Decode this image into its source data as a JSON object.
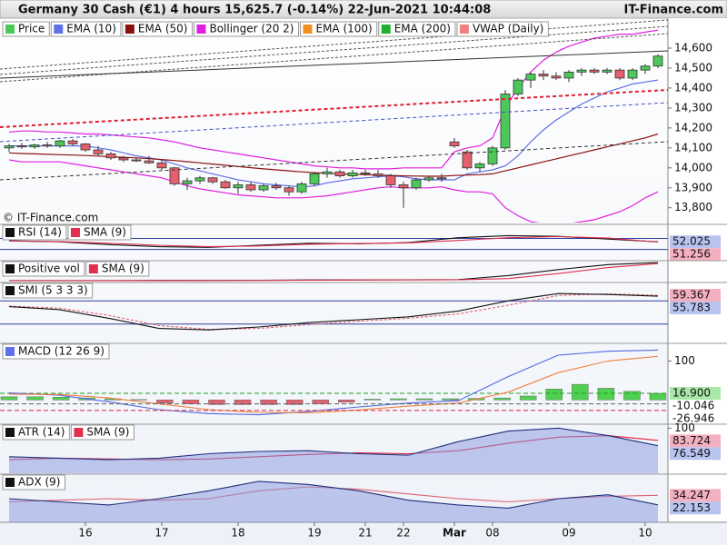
{
  "header": {
    "title": "Germany 30 Cash (€1) 4 hours 15,625.7 (-0.14%) 22-Jun-2021 10:44:08",
    "brand": "IT-Finance.com"
  },
  "chart_data": [
    {
      "type": "candlestick",
      "watermark": "© IT-Finance.com",
      "categories": [
        null,
        null,
        null,
        null,
        null,
        null,
        "16",
        null,
        null,
        null,
        null,
        null,
        "17",
        null,
        null,
        null,
        null,
        null,
        "18",
        null,
        null,
        null,
        null,
        null,
        "19",
        null,
        null,
        null,
        "21",
        null,
        null,
        "22",
        null,
        null,
        null,
        "Mar",
        null,
        null,
        "08",
        null,
        null,
        null,
        null,
        null,
        "09",
        null,
        null,
        null,
        null,
        null,
        "10",
        null
      ],
      "open": [
        14100,
        14110,
        14105,
        14115,
        14110,
        14135,
        14120,
        14090,
        14070,
        14050,
        14040,
        14035,
        14025,
        14000,
        13920,
        13935,
        13950,
        13930,
        13900,
        13915,
        13890,
        13910,
        13900,
        13880,
        13920,
        13970,
        13980,
        13960,
        13975,
        13970,
        13960,
        13915,
        13900,
        13940,
        13950,
        14130,
        14080,
        14000,
        14020,
        14100,
        14370,
        14440,
        14470,
        14460,
        14450,
        14480,
        14490,
        14480,
        14490,
        14450,
        14490,
        14510
      ],
      "high": [
        14120,
        14125,
        14120,
        14130,
        14140,
        14145,
        14125,
        14110,
        14080,
        14060,
        14050,
        14060,
        14040,
        14005,
        13950,
        13960,
        13955,
        13940,
        13930,
        13930,
        13920,
        13925,
        13910,
        13930,
        13980,
        14000,
        13990,
        13990,
        13990,
        13990,
        13970,
        13930,
        13950,
        13960,
        13970,
        14150,
        14090,
        14030,
        14110,
        14390,
        14450,
        14480,
        14490,
        14480,
        14490,
        14500,
        14500,
        14500,
        14500,
        14500,
        14520,
        14570
      ],
      "low": [
        14080,
        14095,
        14095,
        14100,
        14100,
        14110,
        14080,
        14060,
        14040,
        14030,
        14030,
        14020,
        13990,
        13910,
        13890,
        13920,
        13920,
        13895,
        13870,
        13880,
        13880,
        13890,
        13860,
        13870,
        13910,
        13950,
        13950,
        13950,
        13960,
        13950,
        13900,
        13800,
        13890,
        13930,
        13930,
        14100,
        13990,
        13980,
        14010,
        14090,
        14360,
        14400,
        14440,
        14440,
        14430,
        14460,
        14470,
        14470,
        14440,
        14440,
        14470,
        14500
      ],
      "close": [
        14110,
        14105,
        14115,
        14110,
        14135,
        14120,
        14090,
        14070,
        14050,
        14040,
        14035,
        14025,
        14000,
        13920,
        13935,
        13950,
        13930,
        13900,
        13915,
        13890,
        13910,
        13900,
        13880,
        13920,
        13970,
        13980,
        13960,
        13975,
        13970,
        13960,
        13915,
        13900,
        13940,
        13950,
        13945,
        14110,
        14000,
        14020,
        14100,
        14370,
        14440,
        14470,
        14460,
        14450,
        14480,
        14490,
        14480,
        14490,
        14450,
        14490,
        14510,
        14560
      ],
      "up_color": "#4cc85a",
      "down_color": "#e4606e",
      "ylim": [
        13726,
        14650
      ],
      "yticks": [
        {
          "value": 13800,
          "label": "13,800"
        },
        {
          "value": 13900,
          "label": "13,900"
        },
        {
          "value": 14000,
          "label": "14,000"
        },
        {
          "value": 14100,
          "label": "14,100"
        },
        {
          "value": 14200,
          "label": "14,200"
        },
        {
          "value": 14300,
          "label": "14,300"
        },
        {
          "value": 14400,
          "label": "14,400"
        },
        {
          "value": 14500,
          "label": "14,500"
        },
        {
          "value": 14600,
          "label": "14,600"
        }
      ],
      "legend": [
        {
          "name": "Price",
          "color": "#4cc85a"
        },
        {
          "name": "EMA (10)",
          "color": "#6070e8"
        },
        {
          "name": "EMA (50)",
          "color": "#8b1010"
        },
        {
          "name": "Bollinger (20 2)",
          "color": "#e020e0"
        },
        {
          "name": "EMA (100)",
          "color": "#f09020"
        },
        {
          "name": "EMA (200)",
          "color": "#20b030"
        },
        {
          "name": "VWAP (Daily)",
          "color": "#f08080"
        }
      ],
      "series": [
        {
          "color": "#6070e8",
          "values": [
            14110,
            14110,
            14110,
            14110,
            14110,
            14110,
            14110,
            14100,
            14090,
            14075,
            14060,
            14050,
            14040,
            14020,
            14000,
            13985,
            13970,
            13955,
            13940,
            13930,
            13920,
            13915,
            13910,
            13905,
            13910,
            13925,
            13935,
            13945,
            13950,
            13955,
            13960,
            13955,
            13945,
            13940,
            13940,
            13940,
            13970,
            13980,
            13990,
            14010,
            14060,
            14130,
            14190,
            14240,
            14280,
            14320,
            14350,
            14380,
            14400,
            14420,
            14430,
            14440
          ]
        },
        {
          "color": "#8b1010",
          "values": [
            14075,
            14072,
            14070,
            14068,
            14066,
            14064,
            14062,
            14059,
            14056,
            14053,
            14050,
            14046,
            14042,
            14037,
            14031,
            14025,
            14019,
            14013,
            14007,
            14001,
            13995,
            13990,
            13985,
            13980,
            13976,
            13973,
            13970,
            13968,
            13966,
            13964,
            13962,
            13960,
            13959,
            13958,
            13958,
            13962,
            13964,
            13966,
            13970,
            13985,
            14000,
            14015,
            14030,
            14045,
            14060,
            14075,
            14090,
            14105,
            14120,
            14135,
            14150,
            14170
          ]
        },
        {
          "color": "#e020e0",
          "values": [
            14180,
            14185,
            14185,
            14180,
            14180,
            14175,
            14170,
            14170,
            14165,
            14160,
            14155,
            14150,
            14140,
            14130,
            14115,
            14100,
            14090,
            14080,
            14070,
            14060,
            14050,
            14040,
            14030,
            14020,
            14010,
            14005,
            14000,
            14000,
            13995,
            13995,
            13995,
            14000,
            14000,
            14000,
            14000,
            14080,
            14100,
            14110,
            14150,
            14300,
            14400,
            14480,
            14540,
            14580,
            14610,
            14630,
            14650,
            14660,
            14670,
            14670,
            14680,
            14690
          ]
        },
        {
          "color": "#e020e0",
          "values": [
            14040,
            14030,
            14030,
            14030,
            14030,
            14020,
            14010,
            14000,
            13990,
            13980,
            13970,
            13960,
            13950,
            13930,
            13910,
            13895,
            13885,
            13875,
            13865,
            13860,
            13855,
            13850,
            13850,
            13850,
            13855,
            13860,
            13870,
            13880,
            13890,
            13900,
            13905,
            13900,
            13900,
            13900,
            13905,
            13890,
            13880,
            13880,
            13870,
            13800,
            13760,
            13730,
            13720,
            13720,
            13720,
            13730,
            13740,
            13760,
            13780,
            13810,
            13850,
            13880
          ]
        }
      ]
    },
    {
      "type": "indicator",
      "legend": [
        {
          "name": "RSI (14)",
          "color": "#111111"
        },
        {
          "name": "SMA (9)",
          "color": "#e03050"
        }
      ],
      "ylim": [
        0,
        100
      ],
      "hlines": [
        62,
        30
      ],
      "series": [
        {
          "color": "#111111",
          "box": "#b8c4f0",
          "show_last": true,
          "values": [
            55,
            52,
            44,
            38,
            36,
            42,
            48,
            46,
            50,
            64,
            70,
            68,
            60,
            52.025
          ]
        },
        {
          "color": "#e03050",
          "box": "#f4b0c0",
          "show_last": true,
          "values": [
            54,
            53,
            48,
            42,
            38,
            40,
            45,
            47,
            49,
            56,
            64,
            67,
            63,
            51.256
          ]
        }
      ]
    },
    {
      "type": "indicator",
      "legend": [
        {
          "name": "Positive vol",
          "color": "#111111"
        },
        {
          "name": "SMA (9)",
          "color": "#e03050"
        }
      ],
      "ylim": [
        0,
        100
      ],
      "series": [
        {
          "color": "#111111",
          "values": [
            5,
            5,
            5,
            6,
            6,
            7,
            8,
            8,
            9,
            10,
            30,
            60,
            85,
            95
          ]
        },
        {
          "color": "#e03050",
          "values": [
            5,
            5,
            5,
            5,
            6,
            6,
            7,
            8,
            8,
            9,
            15,
            40,
            70,
            90
          ]
        }
      ]
    },
    {
      "type": "indicator",
      "legend": [
        {
          "name": "SMI (5 3 3 3)",
          "color": "#111111"
        }
      ],
      "ylim": [
        -100,
        100
      ],
      "hlines": [
        40,
        -40
      ],
      "series": [
        {
          "color": "#e06070",
          "box": "#f4b0c0",
          "show_last": true,
          "dash": true,
          "values": [
            22,
            15,
            -10,
            -45,
            -58,
            -55,
            -42,
            -30,
            -20,
            -5,
            25,
            58,
            64,
            59.367
          ]
        },
        {
          "color": "#111111",
          "box": "#b8c4f0",
          "show_last": true,
          "values": [
            20,
            10,
            -20,
            -55,
            -60,
            -50,
            -35,
            -25,
            -15,
            5,
            40,
            65,
            62,
            55.783
          ]
        }
      ]
    },
    {
      "type": "indicator",
      "legend": [
        {
          "name": "MACD (12 26 9)",
          "color": "#6070e8"
        }
      ],
      "ylim": [
        -60,
        143
      ],
      "yticks": [
        100
      ],
      "bars": {
        "color": "#50d050",
        "box": "#a8e8a8",
        "values": [
          8,
          8,
          7,
          5,
          3,
          1,
          -8,
          -10,
          -12,
          -12,
          -12,
          -12,
          -10,
          -6,
          2,
          3,
          3,
          3,
          4,
          5,
          10,
          28,
          40,
          30,
          22,
          16.9
        ],
        "value_labels": [
          null,
          null,
          null,
          null,
          null,
          null,
          null,
          null,
          null,
          null,
          null,
          null,
          null,
          null,
          null,
          null,
          null,
          null,
          null,
          null,
          null,
          null,
          null,
          null,
          null,
          "16.900"
        ]
      },
      "neg_color": "#e4606e",
      "levels": [
        {
          "value": -10.046,
          "color": "#606060"
        },
        {
          "value": -26.946,
          "color": "#e02040"
        }
      ],
      "series": [
        {
          "color": "#5068e0",
          "values": [
            18,
            12,
            -5,
            -25,
            -35,
            -38,
            -30,
            -18,
            -8,
            -2,
            60,
            115,
            125,
            128
          ]
        },
        {
          "color": "#f08040",
          "values": [
            15,
            14,
            5,
            -10,
            -25,
            -32,
            -33,
            -26,
            -16,
            -8,
            20,
            70,
            100,
            112
          ]
        }
      ]
    },
    {
      "type": "indicator",
      "legend": [
        {
          "name": "ATR (14)",
          "color": "#111111"
        },
        {
          "name": "SMA (9)",
          "color": "#e03050"
        }
      ],
      "ylim": [
        40,
        104
      ],
      "yticks": [
        100
      ],
      "series": [
        {
          "color": "#e02040",
          "box": "#f4b0c0",
          "show_last": true,
          "values": [
            58,
            60,
            59,
            58,
            59,
            62,
            65,
            67,
            66,
            70,
            80,
            88,
            90,
            83.724
          ]
        },
        {
          "color": "#20307a",
          "fill": "#8898e0",
          "box": "#b8c4f0",
          "show_last": true,
          "values": [
            62,
            60,
            58,
            60,
            66,
            69,
            70,
            66,
            64,
            82,
            96,
            100,
            90,
            76.549
          ]
        }
      ]
    },
    {
      "type": "indicator",
      "legend": [
        {
          "name": "ADX (9)",
          "color": "#111111"
        }
      ],
      "ylim": [
        0,
        60
      ],
      "series": [
        {
          "color": "#e06070",
          "box": "#f4b0c0",
          "show_last": true,
          "values": [
            26,
            28,
            30,
            28,
            30,
            40,
            45,
            42,
            36,
            30,
            26,
            30,
            33,
            34.247
          ]
        },
        {
          "color": "#20307a",
          "fill": "#8898e0",
          "box": "#b8c4f0",
          "show_last": true,
          "values": [
            30,
            26,
            22,
            30,
            40,
            52,
            48,
            40,
            28,
            22,
            18,
            30,
            35,
            22.153
          ]
        }
      ]
    }
  ]
}
